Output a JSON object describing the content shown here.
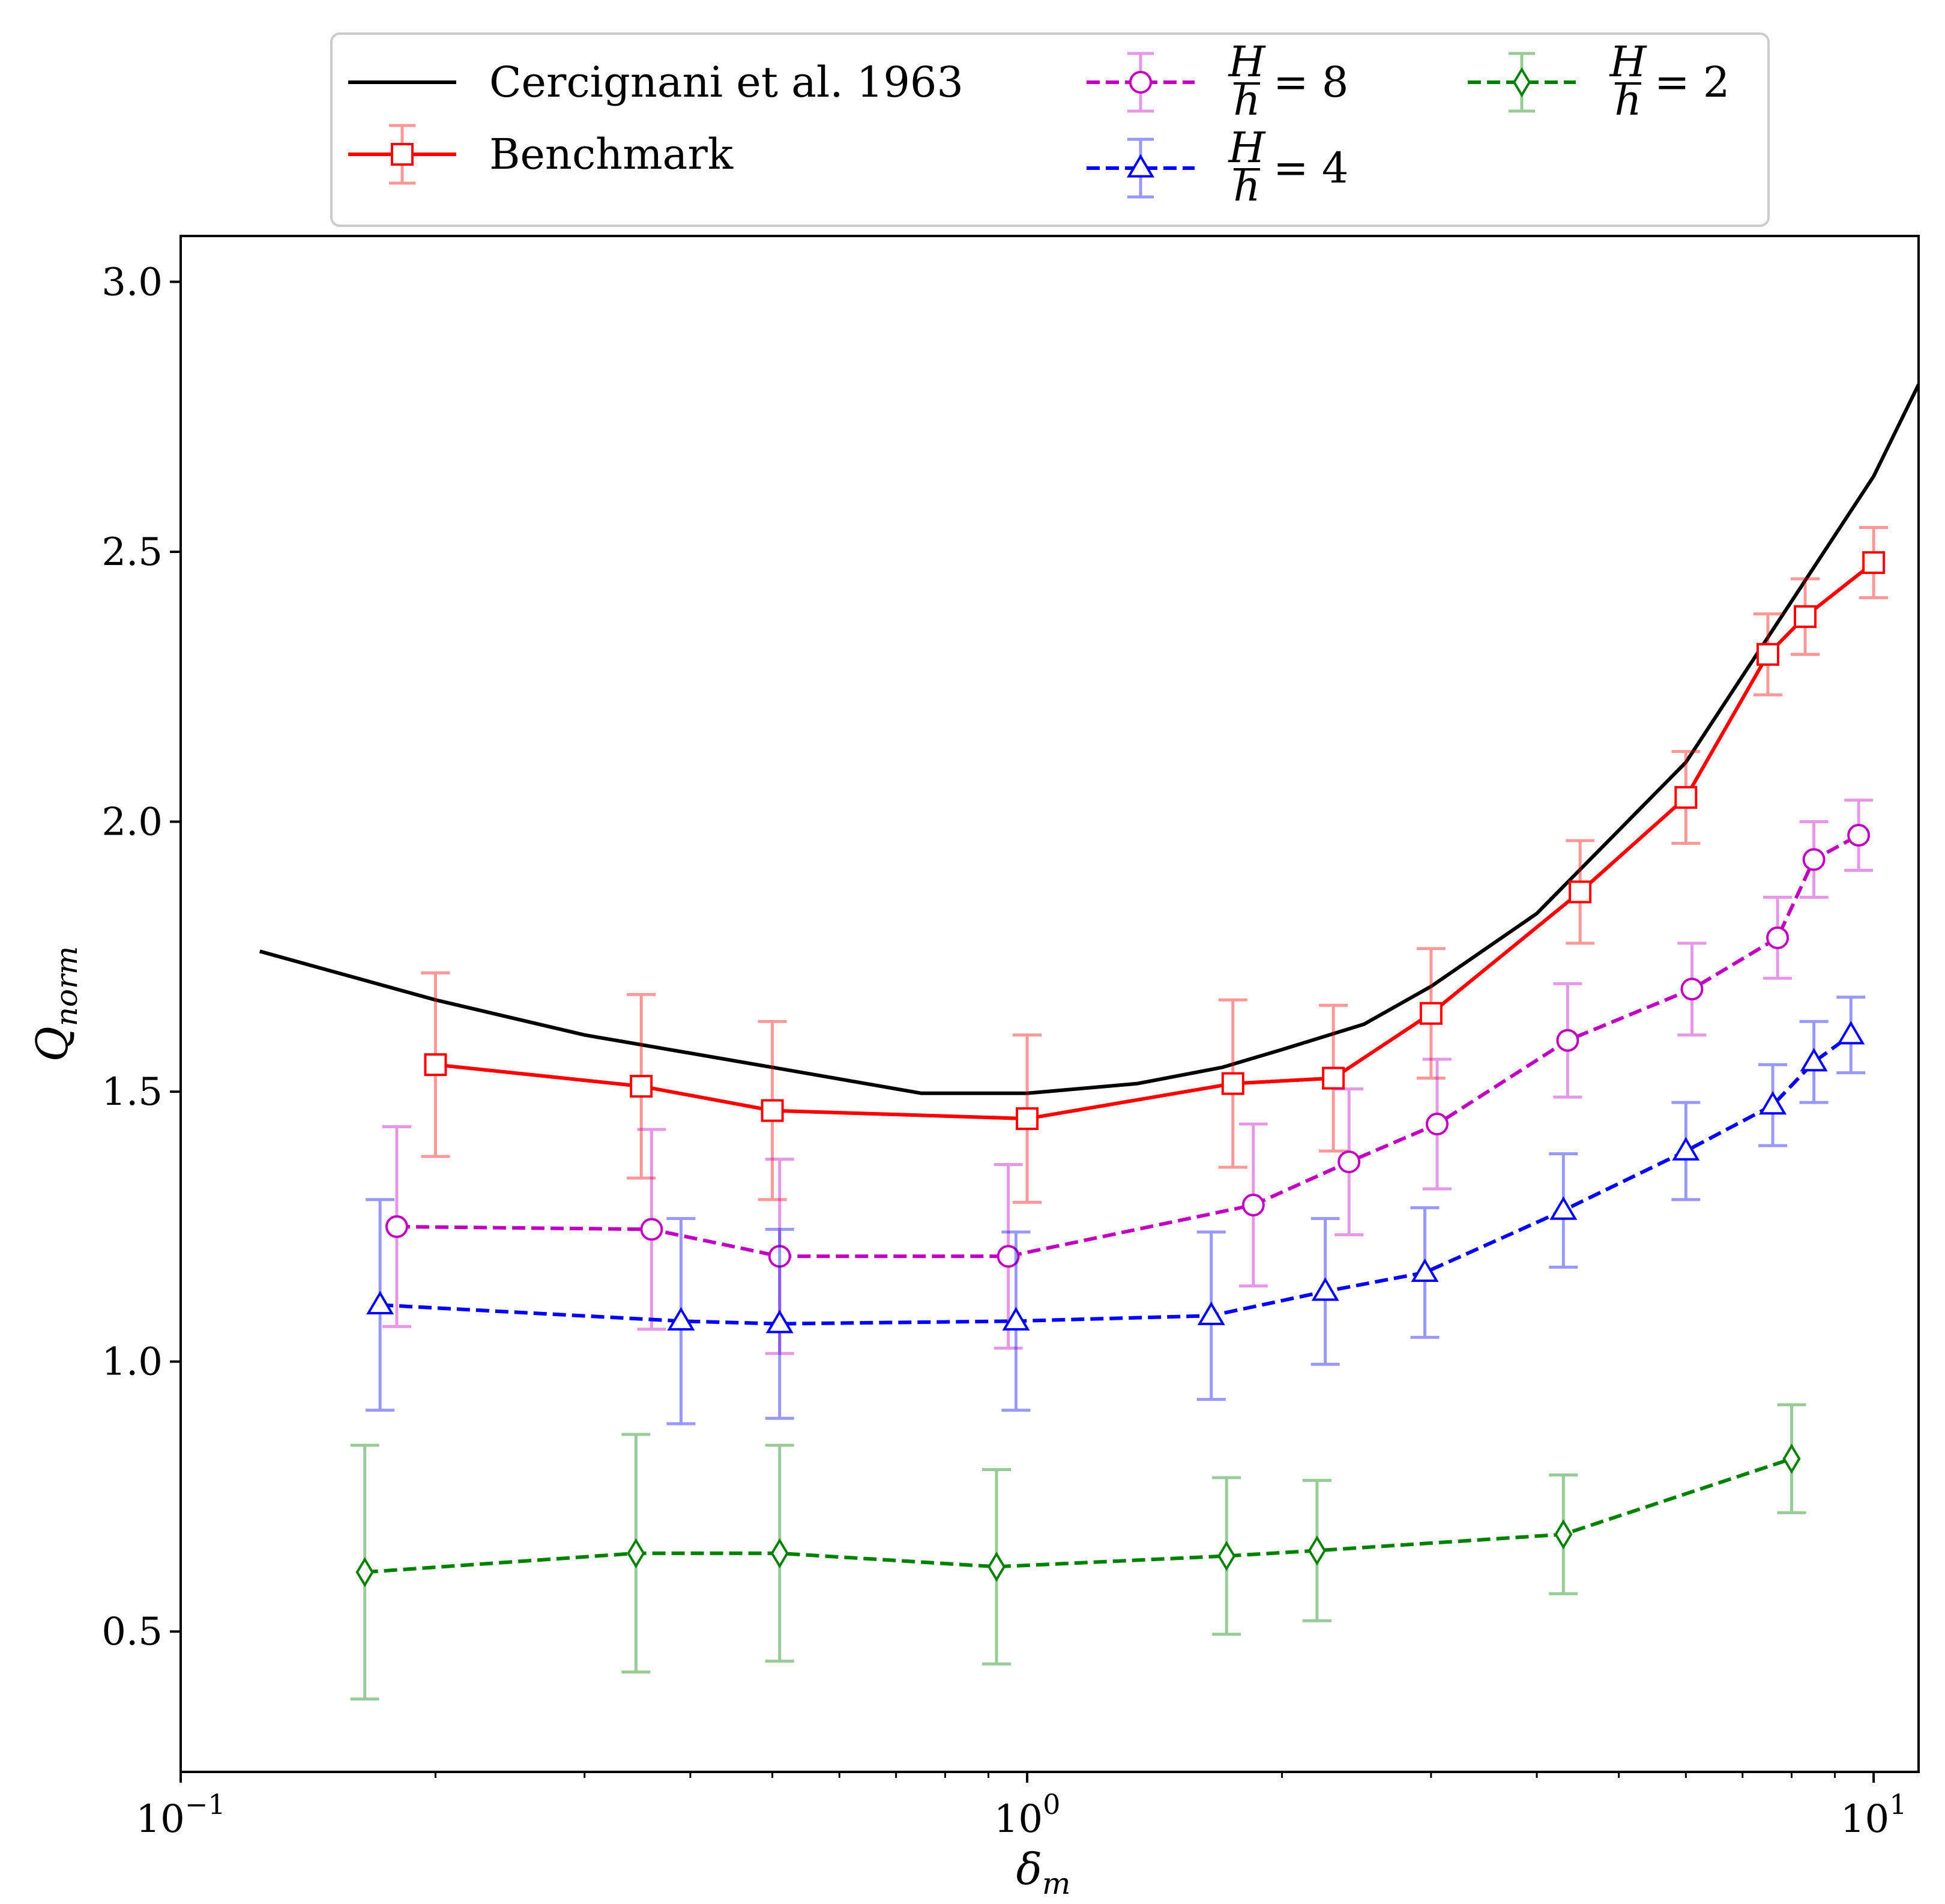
{
  "chart_data": {
    "type": "line",
    "xscale": "log",
    "xlim": [
      0.1,
      11.3
    ],
    "ylim": [
      0.24,
      3.085
    ],
    "xlabel": "δ",
    "xlabel_sub": "m",
    "ylabel": "Q",
    "ylabel_sub": "norm",
    "xticks": [
      {
        "value": 0.1,
        "base": "10",
        "exp": "−1"
      },
      {
        "value": 1,
        "base": "10",
        "exp": "0"
      },
      {
        "value": 10,
        "base": "10",
        "exp": "1"
      }
    ],
    "yticks": [
      {
        "value": 0.5,
        "label": "0.5"
      },
      {
        "value": 1.0,
        "label": "1.0"
      },
      {
        "value": 1.5,
        "label": "1.5"
      },
      {
        "value": 2.0,
        "label": "2.0"
      },
      {
        "value": 2.5,
        "label": "2.5"
      },
      {
        "value": 3.0,
        "label": "3.0"
      }
    ],
    "legend_position": "top, outside plot",
    "series": [
      {
        "name": "Cercignani et al. 1963",
        "color": "#000000",
        "dash": "solid",
        "marker": "none",
        "x": [
          0.124,
          0.2,
          0.3,
          0.5,
          0.75,
          1.0,
          1.35,
          1.7,
          2.0,
          2.5,
          3.0,
          4.0,
          6.0,
          10.0,
          11.3
        ],
        "y": [
          1.76,
          1.67,
          1.605,
          1.545,
          1.497,
          1.497,
          1.515,
          1.545,
          1.578,
          1.625,
          1.695,
          1.83,
          2.11,
          2.64,
          2.81
        ],
        "err": []
      },
      {
        "name": "Benchmark",
        "color": "#ff0000",
        "dash": "solid",
        "marker": "square",
        "x": [
          0.2,
          0.35,
          0.5,
          1.0,
          1.75,
          2.3,
          3.0,
          4.5,
          6.0,
          7.5,
          8.3,
          10.0
        ],
        "y": [
          1.55,
          1.51,
          1.465,
          1.45,
          1.515,
          1.525,
          1.645,
          1.87,
          2.045,
          2.31,
          2.38,
          2.48
        ],
        "err": [
          0.17,
          0.17,
          0.165,
          0.155,
          0.155,
          0.135,
          0.12,
          0.095,
          0.085,
          0.075,
          0.07,
          0.065
        ]
      },
      {
        "name": "H/h = 8",
        "legend_num": "H",
        "legend_den": "h",
        "legend_rhs": "= 8",
        "color": "#bf00bf",
        "dash": "dashed",
        "marker": "circle",
        "x": [
          0.18,
          0.36,
          0.51,
          0.95,
          1.85,
          2.4,
          3.05,
          4.35,
          6.1,
          7.7,
          8.5,
          9.6
        ],
        "y": [
          1.25,
          1.245,
          1.195,
          1.195,
          1.29,
          1.37,
          1.44,
          1.595,
          1.69,
          1.785,
          1.93,
          1.975
        ],
        "err": [
          0.185,
          0.185,
          0.18,
          0.17,
          0.15,
          0.135,
          0.12,
          0.105,
          0.085,
          0.075,
          0.07,
          0.065
        ]
      },
      {
        "name": "H/h = 4",
        "legend_num": "H",
        "legend_den": "h",
        "legend_rhs": "= 4",
        "color": "#0000ff",
        "dash": "dashed",
        "marker": "triangle",
        "x": [
          0.172,
          0.39,
          0.51,
          0.97,
          1.65,
          2.25,
          2.95,
          4.3,
          6.0,
          7.6,
          8.5,
          9.4
        ],
        "y": [
          1.105,
          1.075,
          1.07,
          1.075,
          1.085,
          1.13,
          1.165,
          1.28,
          1.39,
          1.475,
          1.555,
          1.605
        ],
        "err": [
          0.195,
          0.19,
          0.175,
          0.165,
          0.155,
          0.135,
          0.12,
          0.105,
          0.09,
          0.075,
          0.075,
          0.07
        ]
      },
      {
        "name": "H/h = 2",
        "legend_num": "H",
        "legend_den": "h",
        "legend_rhs": "= 2",
        "color": "#008000",
        "dash": "dashed",
        "marker": "diamond",
        "x": [
          0.165,
          0.345,
          0.51,
          0.92,
          1.72,
          2.2,
          4.3,
          8.0
        ],
        "y": [
          0.61,
          0.645,
          0.645,
          0.62,
          0.64,
          0.65,
          0.68,
          0.82
        ],
        "err": [
          0.235,
          0.22,
          0.2,
          0.18,
          0.145,
          0.13,
          0.11,
          0.1
        ]
      }
    ]
  }
}
